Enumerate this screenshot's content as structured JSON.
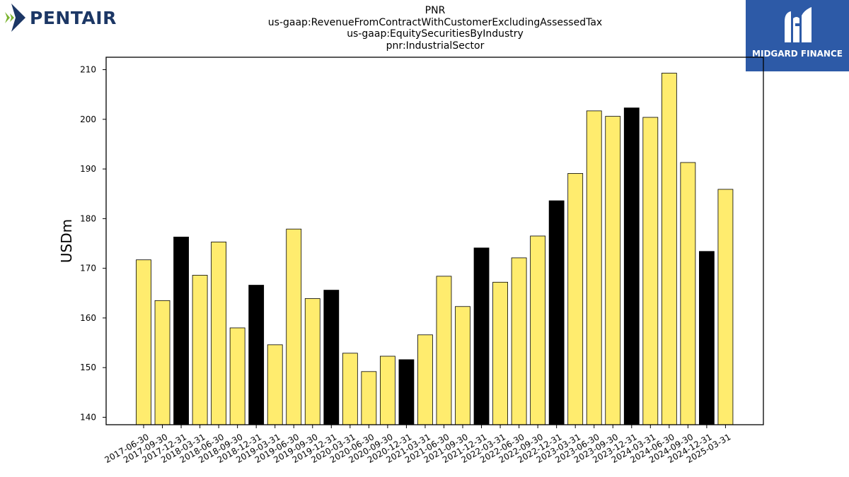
{
  "title_lines": [
    "PNR",
    "us-gaap:RevenueFromContractWithCustomerExcludingAssessedTax",
    "us-gaap:EquitySecuritiesByIndustry",
    "pnr:IndustrialSector"
  ],
  "logos": {
    "left_text": "PENTAIR",
    "right_text": "MIDGARD FINANCE"
  },
  "colors": {
    "bar_default": "#ffec6e",
    "bar_highlight": "#000000",
    "bar_edge": "#000000",
    "pentair_navy": "#1c3765",
    "pentair_green": "#7ab32e",
    "midgard_blue": "#2d5aa7"
  },
  "chart_data": {
    "type": "bar",
    "title": "",
    "xlabel": "",
    "ylabel": "USDm",
    "ylim": [
      138.5,
      212.5
    ],
    "yticks": [
      140,
      150,
      160,
      170,
      180,
      190,
      200,
      210
    ],
    "grid": false,
    "legend": "none",
    "categories": [
      "2017-06-30",
      "2017-09-30",
      "2017-12-31",
      "2018-03-31",
      "2018-06-30",
      "2018-09-30",
      "2018-12-31",
      "2019-03-31",
      "2019-06-30",
      "2019-09-30",
      "2019-12-31",
      "2020-03-31",
      "2020-06-30",
      "2020-09-30",
      "2020-12-31",
      "2021-03-31",
      "2021-06-30",
      "2021-09-30",
      "2021-12-31",
      "2022-03-31",
      "2022-06-30",
      "2022-09-30",
      "2022-12-31",
      "2023-03-31",
      "2023-06-30",
      "2023-09-30",
      "2023-12-31",
      "2024-03-31",
      "2024-06-30",
      "2024-09-30",
      "2024-12-31",
      "2025-03-31"
    ],
    "values": [
      171.7,
      163.5,
      176.3,
      168.6,
      175.3,
      158.0,
      166.6,
      154.6,
      177.9,
      163.9,
      165.6,
      152.9,
      149.2,
      152.3,
      151.6,
      156.6,
      168.4,
      162.3,
      174.1,
      167.2,
      172.1,
      176.5,
      183.6,
      189.1,
      201.7,
      200.6,
      202.3,
      200.4,
      209.3,
      191.3,
      173.4,
      185.9
    ],
    "highlight": [
      false,
      false,
      true,
      false,
      false,
      false,
      true,
      false,
      false,
      false,
      true,
      false,
      false,
      false,
      true,
      false,
      false,
      false,
      true,
      false,
      false,
      false,
      true,
      false,
      false,
      false,
      true,
      false,
      false,
      false,
      true,
      false
    ]
  }
}
